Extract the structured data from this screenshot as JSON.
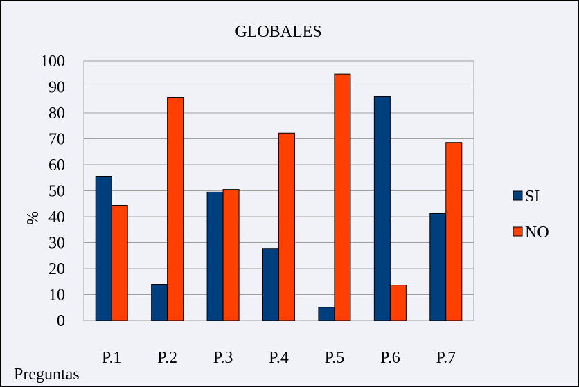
{
  "chart_data": {
    "type": "bar",
    "title": "GLOBALES",
    "ylabel": "%",
    "xlabel": "Preguntas",
    "ylim": [
      0,
      100
    ],
    "yticks": [
      0,
      10,
      20,
      30,
      40,
      50,
      60,
      70,
      80,
      90,
      100
    ],
    "grid": true,
    "legend_position": "right",
    "categories": [
      "P.1",
      "P.2",
      "P.3",
      "P.4",
      "P.5",
      "P.6",
      "P.7"
    ],
    "series": [
      {
        "name": "SI",
        "color": "#003f7d",
        "values": [
          55.6,
          14.0,
          49.5,
          27.8,
          5.1,
          86.3,
          41.2
        ]
      },
      {
        "name": "NO",
        "color": "#ff4000",
        "values": [
          44.4,
          86.0,
          50.5,
          72.2,
          94.9,
          13.7,
          68.6
        ]
      }
    ]
  }
}
